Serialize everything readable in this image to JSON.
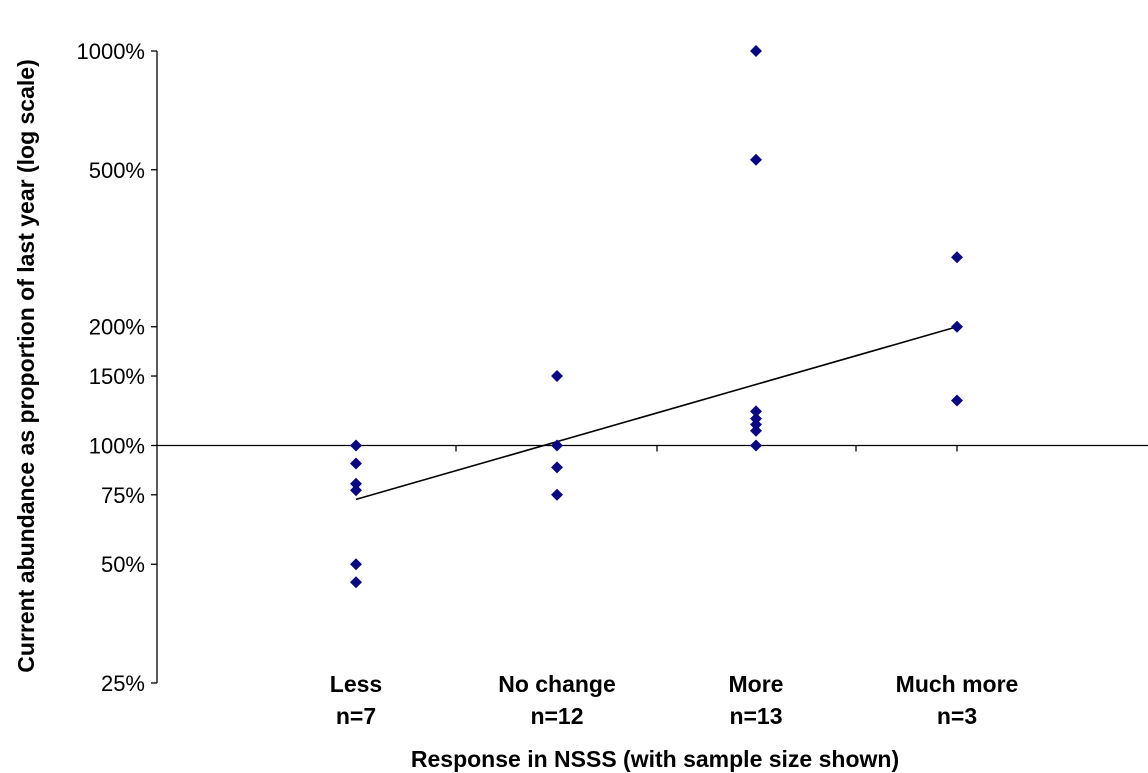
{
  "chart_data": {
    "type": "scatter",
    "title": "",
    "xlabel": "Response in NSSS (with sample size shown)",
    "ylabel": "Current abundance as proportion of last year (log scale)",
    "y_scale": "log",
    "ylim": [
      0.25,
      10
    ],
    "yticks": [
      {
        "value": 0.25,
        "label": "25%"
      },
      {
        "value": 0.5,
        "label": "50%"
      },
      {
        "value": 0.75,
        "label": "75%"
      },
      {
        "value": 1.0,
        "label": "100%"
      },
      {
        "value": 1.5,
        "label": "150%"
      },
      {
        "value": 2.0,
        "label": "200%"
      },
      {
        "value": 5.0,
        "label": "500%"
      },
      {
        "value": 10.0,
        "label": "1000%"
      }
    ],
    "categories": [
      {
        "name": "Less",
        "n_label": "n=7"
      },
      {
        "name": "No change",
        "n_label": "n=12"
      },
      {
        "name": "More",
        "n_label": "n=13"
      },
      {
        "name": "Much more",
        "n_label": "n=3"
      }
    ],
    "series": [
      {
        "marker_color": "#0a0a80",
        "points": [
          {
            "category": "Less",
            "y": 1.0
          },
          {
            "category": "Less",
            "y": 0.9
          },
          {
            "category": "Less",
            "y": 0.8
          },
          {
            "category": "Less",
            "y": 0.77
          },
          {
            "category": "Less",
            "y": 0.5
          },
          {
            "category": "Less",
            "y": 0.45
          },
          {
            "category": "No change",
            "y": 1.5
          },
          {
            "category": "No change",
            "y": 1.0
          },
          {
            "category": "No change",
            "y": 0.88
          },
          {
            "category": "No change",
            "y": 0.75
          },
          {
            "category": "More",
            "y": 10.0
          },
          {
            "category": "More",
            "y": 5.3
          },
          {
            "category": "More",
            "y": 1.22
          },
          {
            "category": "More",
            "y": 1.17
          },
          {
            "category": "More",
            "y": 1.13
          },
          {
            "category": "More",
            "y": 1.09
          },
          {
            "category": "More",
            "y": 1.0
          },
          {
            "category": "Much more",
            "y": 3.0
          },
          {
            "category": "Much more",
            "y": 2.0
          },
          {
            "category": "Much more",
            "y": 1.3
          }
        ]
      }
    ],
    "trendline": {
      "from": {
        "category": "Less",
        "y": 0.73
      },
      "to": {
        "category": "Much more",
        "y": 2.0
      }
    },
    "reference_line": {
      "y": 1.0
    },
    "legend": "none",
    "grid": false
  }
}
